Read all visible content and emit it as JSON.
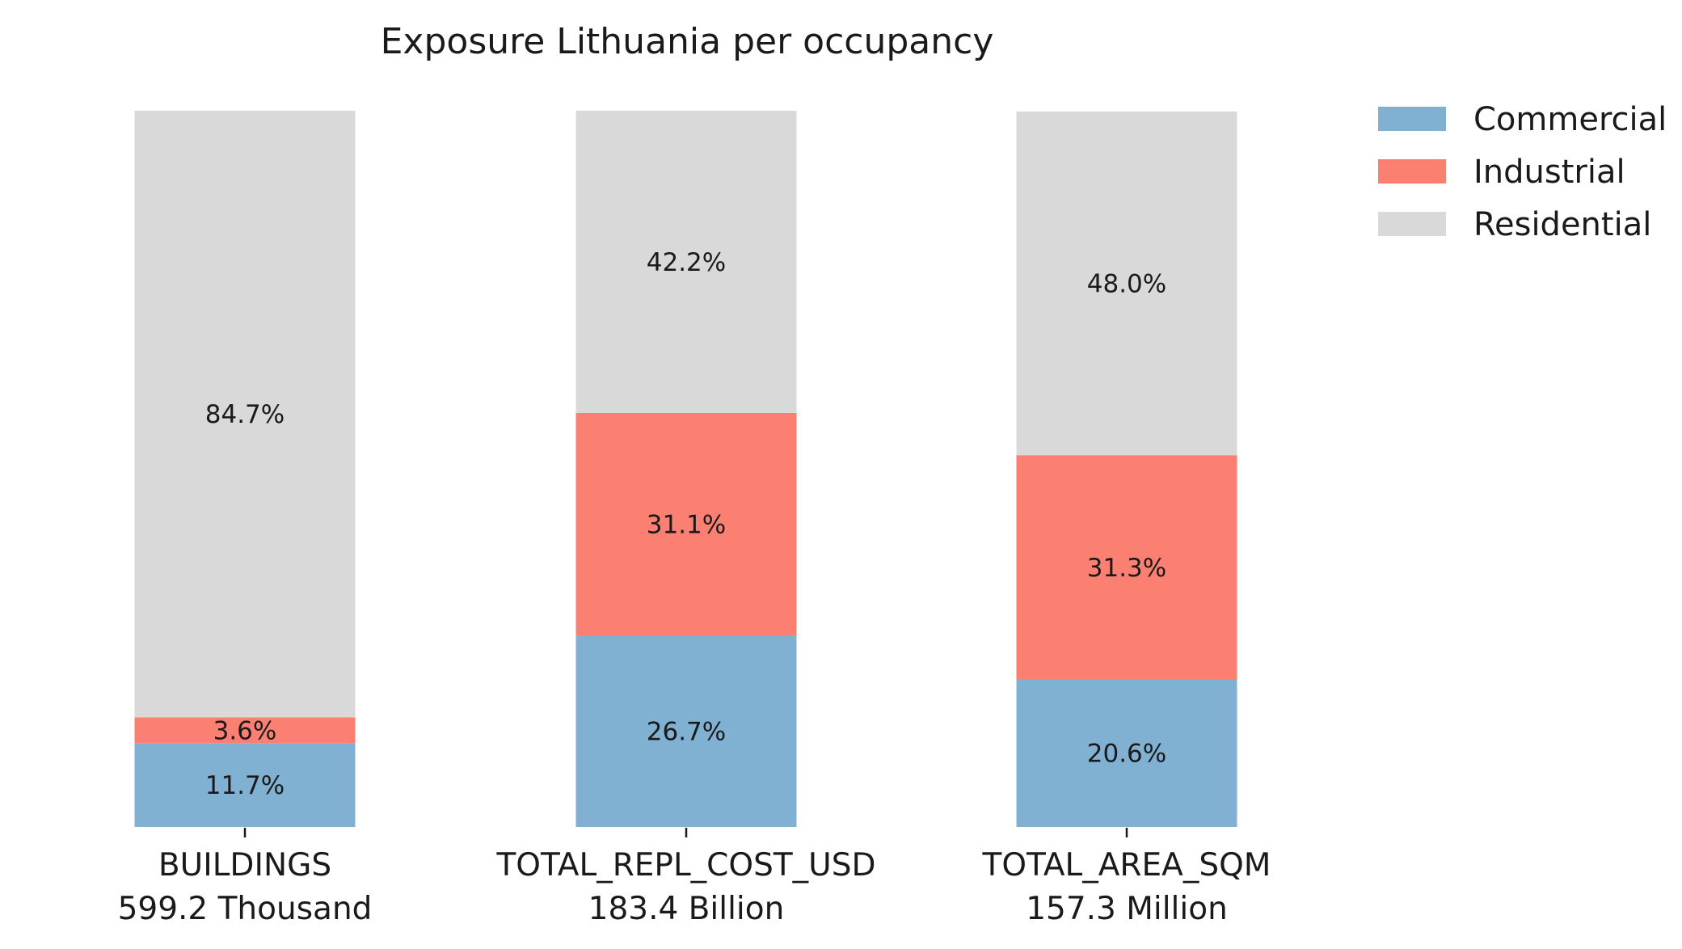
{
  "chart_data": {
    "type": "bar",
    "stacked": true,
    "normalized_percent": true,
    "title": "Exposure Lithuania per occupancy",
    "xlabel": "",
    "ylabel": "",
    "ylim": [
      0,
      100
    ],
    "grid": false,
    "legend_position": "top-right",
    "categories": [
      "BUILDINGS",
      "TOTAL_REPL_COST_USD",
      "TOTAL_AREA_SQM"
    ],
    "category_totals": [
      "599.2 Thousand",
      "183.4 Billion",
      "157.3 Million"
    ],
    "series": [
      {
        "name": "Commercial",
        "color": "#80b1d3",
        "values": [
          11.7,
          26.7,
          20.6
        ],
        "labels": [
          "11.7%",
          "26.7%",
          "20.6%"
        ]
      },
      {
        "name": "Industrial",
        "color": "#fb8072",
        "values": [
          3.6,
          31.1,
          31.3
        ],
        "labels": [
          "3.6%",
          "31.1%",
          "31.3%"
        ]
      },
      {
        "name": "Residential",
        "color": "#d9d9d9",
        "values": [
          84.7,
          42.2,
          48.0
        ],
        "labels": [
          "84.7%",
          "42.2%",
          "48.0%"
        ]
      }
    ]
  }
}
